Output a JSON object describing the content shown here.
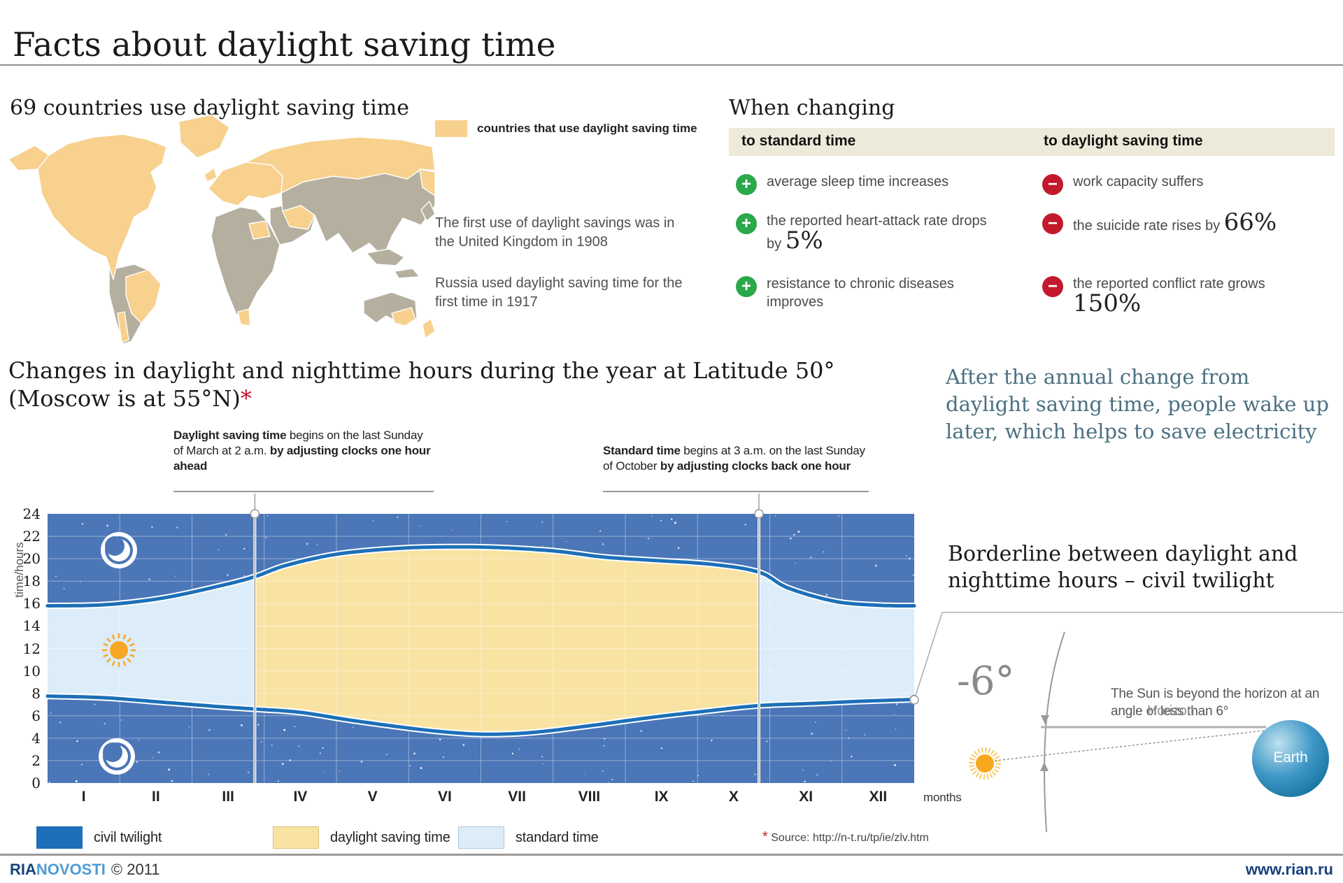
{
  "page": {
    "title": "Facts about daylight saving time"
  },
  "map_section": {
    "heading": "69 countries use daylight saving time",
    "legend_label": "countries that use daylight saving time",
    "fact_uk": "The first use of daylight savings was in the United Kingdom in 1908",
    "fact_russia": "Russia used daylight saving time for the first time in 1917",
    "colors": {
      "dst_country": "#f7d18d",
      "other_country": "#b5af9f"
    }
  },
  "when_changing": {
    "heading": "When changing",
    "columns": [
      {
        "header": "to standard time",
        "type": "positive",
        "items": [
          {
            "text": "average sleep time increases",
            "big": ""
          },
          {
            "text": "the reported heart-attack rate drops by",
            "big": "5%"
          },
          {
            "text": "resistance to chronic diseases improves",
            "big": ""
          }
        ]
      },
      {
        "header": "to daylight saving time",
        "type": "negative",
        "items": [
          {
            "text": "work capacity suffers",
            "big": ""
          },
          {
            "text": "the suicide rate rises by",
            "big": "66%"
          },
          {
            "text": "the reported conflict rate grows",
            "big": "150%"
          }
        ]
      }
    ],
    "colors": {
      "positive": "#2aa84a",
      "negative": "#c21a2c",
      "header_band": "#edead9"
    }
  },
  "chart_section": {
    "heading_line1": "Changes in daylight and nighttime hours during the year at Latitude 50°",
    "heading_line2": "(Moscow is at 55°N)",
    "heading_asterisk": "*",
    "note_dst": {
      "bold1": "Daylight saving time",
      "normal1": " begins on the last Sunday of March at 2 a.m. ",
      "bold2": "by adjusting clocks one hour ahead"
    },
    "note_std": {
      "bold1": "Standard time",
      "normal1": " begins at 3 a.m. on the last Sunday of October ",
      "bold2": "by adjusting clocks back one hour"
    },
    "source": {
      "asterisk": "*",
      "text": "Source: http://n-t.ru/tp/ie/zlv.htm"
    }
  },
  "chart_data": {
    "type": "area",
    "title": "Changes in daylight and nighttime hours during the year at Latitude 50°",
    "x_months": [
      "I",
      "II",
      "III",
      "IV",
      "V",
      "VI",
      "VII",
      "VIII",
      "IX",
      "X",
      "XI",
      "XII"
    ],
    "x_axis_label": "months",
    "y_axis_label": "time/hours",
    "ylim": [
      0,
      24
    ],
    "ytick_step": 2,
    "yticks": [
      "24",
      "22",
      "20",
      "18",
      "16",
      "14",
      "12",
      "10",
      "8",
      "6",
      "4",
      "2",
      "0"
    ],
    "dst_start_month_fraction": 2.87,
    "dst_end_month_fraction": 9.85,
    "series": [
      {
        "name": "evening civil twilight boundary (sunset edge, clock hours)",
        "points": [
          [
            0,
            15.8
          ],
          [
            0.8,
            15.9
          ],
          [
            1.6,
            16.5
          ],
          [
            2.4,
            17.6
          ],
          [
            2.87,
            18.4
          ],
          [
            3.3,
            19.4
          ],
          [
            4,
            20.4
          ],
          [
            4.8,
            20.9
          ],
          [
            5.5,
            21.05
          ],
          [
            6.2,
            21.0
          ],
          [
            7,
            20.7
          ],
          [
            7.7,
            20.15
          ],
          [
            8.4,
            19.85
          ],
          [
            9.2,
            19.5
          ],
          [
            9.85,
            18.8
          ],
          [
            10.25,
            17.4
          ],
          [
            10.9,
            16.2
          ],
          [
            11.5,
            15.85
          ],
          [
            12,
            15.8
          ]
        ]
      },
      {
        "name": "morning civil twilight boundary (sunrise edge, clock hours)",
        "points": [
          [
            0,
            7.75
          ],
          [
            0.8,
            7.6
          ],
          [
            1.6,
            7.2
          ],
          [
            2.4,
            6.8
          ],
          [
            2.87,
            6.6
          ],
          [
            3.5,
            6.3
          ],
          [
            4.2,
            5.6
          ],
          [
            5,
            4.9
          ],
          [
            5.6,
            4.5
          ],
          [
            6.1,
            4.35
          ],
          [
            6.7,
            4.5
          ],
          [
            7.5,
            5.1
          ],
          [
            8.3,
            5.8
          ],
          [
            9.1,
            6.4
          ],
          [
            9.85,
            6.9
          ],
          [
            10.6,
            7.1
          ],
          [
            11.3,
            7.3
          ],
          [
            12,
            7.45
          ]
        ]
      }
    ],
    "legend": [
      {
        "label": "civil twilight",
        "color": "#1c6fb8",
        "border": "#1c6fb8"
      },
      {
        "label": "daylight saving time",
        "color": "#f9e3a3",
        "border": "#d9c27a"
      },
      {
        "label": "standard time",
        "color": "#dcecf8",
        "border": "#aac8de"
      }
    ],
    "colors": {
      "night": "#4b76b7",
      "standard": "#dcecf8",
      "dst": "#f9e3a3",
      "twilight": "#1c6fb8",
      "grid": "rgba(255,255,255,0.4)"
    }
  },
  "quote": {
    "text": "After the annual change from daylight saving time, people wake up later, which helps to save electricity"
  },
  "twilight_diagram": {
    "heading_line1": "Borderline between daylight and",
    "heading_line2": "nighttime hours – civil twilight",
    "angle_label": "-6°",
    "description": "The Sun is beyond the horizon at an angle of less than 6°",
    "horizon_label": "Horizon",
    "earth_label": "Earth"
  },
  "footer": {
    "brand_ria": "RIA",
    "brand_novosti": "NOVOSTI",
    "copyright": "© 2011",
    "site": "www.rian.ru"
  }
}
